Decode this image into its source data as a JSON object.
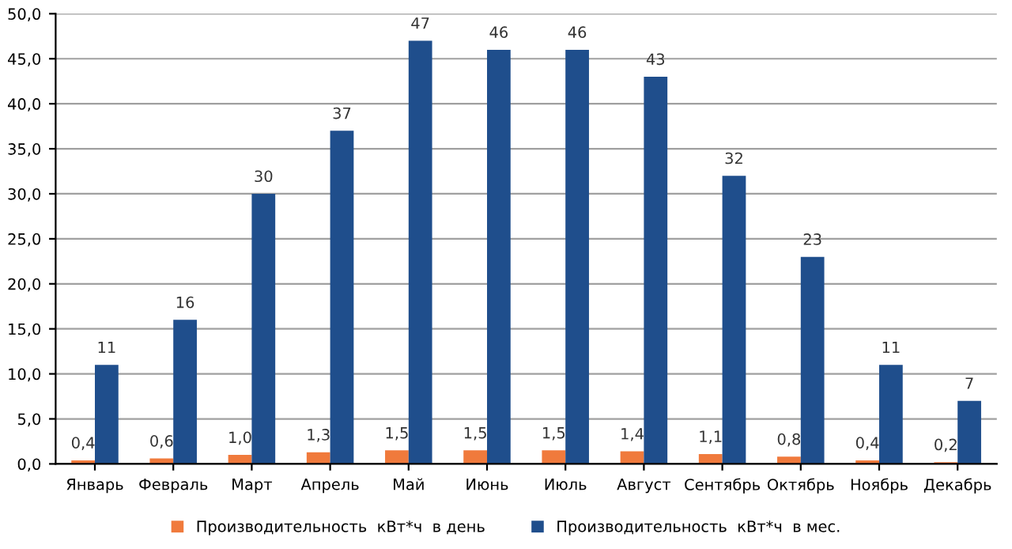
{
  "chart_data": {
    "type": "bar",
    "categories": [
      "Январь",
      "Февраль",
      "Март",
      "Апрель",
      "Май",
      "Июнь",
      "Июль",
      "Август",
      "Сентябрь",
      "Октябрь",
      "Ноябрь",
      "Декабрь"
    ],
    "series": [
      {
        "name": "Производительность  кВт*ч  в день",
        "color": "#f07a3c",
        "values": [
          0.4,
          0.6,
          1.0,
          1.3,
          1.5,
          1.5,
          1.5,
          1.4,
          1.1,
          0.8,
          0.4,
          0.2
        ],
        "value_labels": [
          "0,4",
          "0,6",
          "1,0",
          "1,3",
          "1,5",
          "1,5",
          "1,5",
          "1,4",
          "1,1",
          "0,8",
          "0,4",
          "0,2"
        ]
      },
      {
        "name": "Производительность  кВт*ч  в мес.",
        "color": "#1f4e8c",
        "values": [
          11,
          16,
          30,
          37,
          47,
          46,
          46,
          43,
          32,
          23,
          11,
          7
        ],
        "value_labels": [
          "11",
          "16",
          "30",
          "37",
          "47",
          "46",
          "46",
          "43",
          "32",
          "23",
          "11",
          "7"
        ]
      }
    ],
    "ylim": [
      0,
      50
    ],
    "yticks": [
      {
        "value": 0,
        "label": "0,0"
      },
      {
        "value": 5,
        "label": "5,0"
      },
      {
        "value": 10,
        "label": "10,0"
      },
      {
        "value": 15,
        "label": "15,0"
      },
      {
        "value": 20,
        "label": "20,0"
      },
      {
        "value": 25,
        "label": "25,0"
      },
      {
        "value": 30,
        "label": "30,0"
      },
      {
        "value": 35,
        "label": "35,0"
      },
      {
        "value": 40,
        "label": "40,0"
      },
      {
        "value": 45,
        "label": "45,0"
      },
      {
        "value": 50,
        "label": "50,0"
      }
    ],
    "grid": "y",
    "legend": "bottom"
  }
}
